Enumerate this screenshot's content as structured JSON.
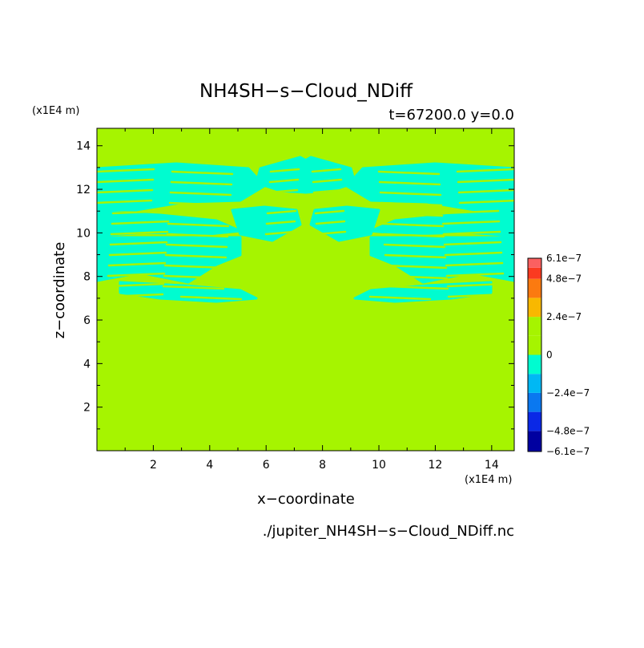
{
  "chart_data": {
    "type": "heatmap",
    "title": "NH4SH−s−Cloud_NDiff",
    "subtitle": "t=67200.0 y=0.0",
    "xlabel": "x−coordinate",
    "ylabel": "z−coordinate",
    "x_unit": "(x1E4 m)",
    "y_unit": "(x1E4 m)",
    "file_label": "./jupiter_NH4SH−s−Cloud_NDiff.nc",
    "xlim": [
      0,
      14.8
    ],
    "ylim": [
      0,
      14.8
    ],
    "x_ticks": [
      "2",
      "4",
      "6",
      "8",
      "10",
      "12",
      "14"
    ],
    "x_tick_values": [
      2,
      4,
      6,
      8,
      10,
      12,
      14
    ],
    "y_ticks": [
      "2",
      "4",
      "6",
      "8",
      "10",
      "12",
      "14"
    ],
    "y_tick_values": [
      2,
      4,
      6,
      8,
      10,
      12,
      14
    ],
    "background_value": 0,
    "background_color": "#a6f400",
    "feature_color": "#00fcd0",
    "feature_value_range": [
      -1.2e-07,
      0
    ],
    "feature_description": "thin bands of small negative values between z≈7.5 and z≈13.3, symmetric about x≈7.5",
    "colorbar": {
      "ticks": [
        "6.1e−7",
        "4.8e−7",
        "2.4e−7",
        "0",
        "−2.4e−7",
        "−4.8e−7",
        "−6.1e−7"
      ],
      "tick_values": [
        6.1e-07,
        4.8e-07,
        2.4e-07,
        0,
        -2.4e-07,
        -4.8e-07,
        -6.1e-07
      ],
      "bands": [
        {
          "from": -6.1e-07,
          "to": -4.8e-07,
          "color": "#0000a0"
        },
        {
          "from": -4.8e-07,
          "to": -3.6e-07,
          "color": "#0a28e6"
        },
        {
          "from": -3.6e-07,
          "to": -2.4e-07,
          "color": "#0a78f0"
        },
        {
          "from": -2.4e-07,
          "to": -1.2e-07,
          "color": "#00b8f4"
        },
        {
          "from": -1.2e-07,
          "to": 0,
          "color": "#00fcd0"
        },
        {
          "from": 0,
          "to": 1.2e-07,
          "color": "#a6f400"
        },
        {
          "from": 1.2e-07,
          "to": 2.4e-07,
          "color": "#a6f400"
        },
        {
          "from": 2.4e-07,
          "to": 3.6e-07,
          "color": "#f8b800"
        },
        {
          "from": 3.6e-07,
          "to": 4.8e-07,
          "color": "#fb7a10"
        },
        {
          "from": 4.8e-07,
          "to": 5.5e-07,
          "color": "#fb3a20"
        },
        {
          "from": 5.5e-07,
          "to": 6.1e-07,
          "color": "#fb6060"
        }
      ]
    }
  }
}
